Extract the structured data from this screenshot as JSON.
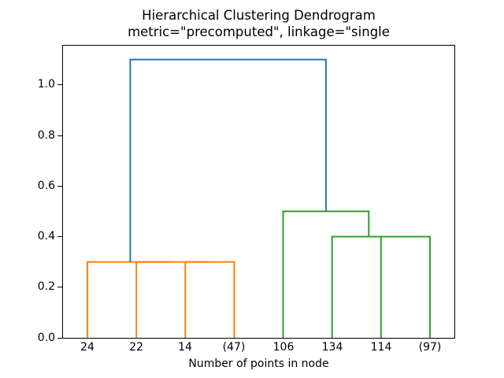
{
  "chart_data": {
    "type": "dendrogram",
    "title": "Hierarchical Clustering Dendrogram",
    "subtitle": "metric=\"precomputed\", linkage=\"single",
    "xlabel": "Number of points in node",
    "ylabel": "",
    "xlim": [
      0,
      80
    ],
    "ylim": [
      0,
      1.155
    ],
    "grid": false,
    "legend": null,
    "yticks": [
      {
        "value": 0.0,
        "label": "0.0"
      },
      {
        "value": 0.2,
        "label": "0.2"
      },
      {
        "value": 0.4,
        "label": "0.4"
      },
      {
        "value": 0.6,
        "label": "0.6"
      },
      {
        "value": 0.8,
        "label": "0.8"
      },
      {
        "value": 1.0,
        "label": "1.0"
      }
    ],
    "leaves": [
      {
        "label": "24",
        "x": 5
      },
      {
        "label": "22",
        "x": 15
      },
      {
        "label": "14",
        "x": 25
      },
      {
        "label": "(47)",
        "x": 35
      },
      {
        "label": "106",
        "x": 45
      },
      {
        "label": "134",
        "x": 55
      },
      {
        "label": "114",
        "x": 65
      },
      {
        "label": "(97)",
        "x": 75
      }
    ],
    "links": [
      {
        "x1": 25,
        "y1": 0,
        "x2": 35,
        "y2": 0,
        "height": 0.3,
        "color": "#ff7f0e"
      },
      {
        "x1": 15,
        "y1": 0,
        "x2": 30,
        "y2": 0.3,
        "height": 0.3,
        "color": "#ff7f0e"
      },
      {
        "x1": 5,
        "y1": 0,
        "x2": 22.5,
        "y2": 0.3,
        "height": 0.3,
        "color": "#ff7f0e"
      },
      {
        "x1": 65,
        "y1": 0,
        "x2": 75,
        "y2": 0,
        "height": 0.4,
        "color": "#2ca02c"
      },
      {
        "x1": 55,
        "y1": 0,
        "x2": 70,
        "y2": 0.4,
        "height": 0.4,
        "color": "#2ca02c"
      },
      {
        "x1": 45,
        "y1": 0,
        "x2": 62.5,
        "y2": 0.4,
        "height": 0.5,
        "color": "#2ca02c"
      },
      {
        "x1": 13.75,
        "y1": 0.3,
        "x2": 53.75,
        "y2": 0.5,
        "height": 1.1,
        "color": "#1f77b4"
      }
    ],
    "colors": {
      "root_link": "#1f77b4",
      "left_cluster": "#ff7f0e",
      "right_cluster": "#2ca02c",
      "axes": "#000000",
      "background": "#ffffff"
    }
  }
}
